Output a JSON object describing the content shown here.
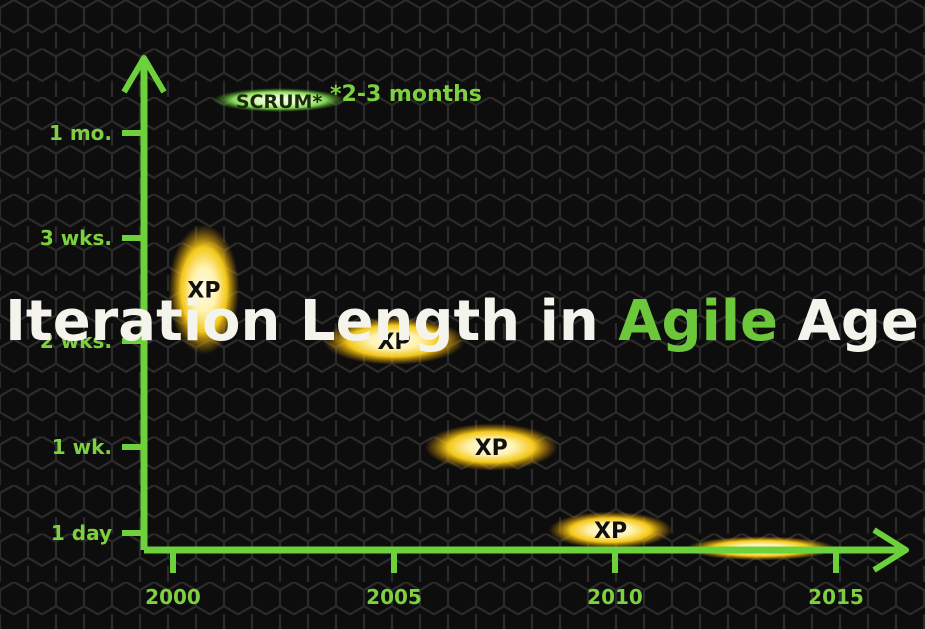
{
  "title": {
    "part1": "Iteration Length in ",
    "part2": "Agile",
    "part3": " Age"
  },
  "colors": {
    "axis": "#6cd13a",
    "tick_label": "#7dd13f",
    "title_white": "#f4f4ec",
    "title_green": "#6cc83a",
    "blob_yellow": "#ffd21a",
    "blob_core": "#fff7d0",
    "scrum_green": "#8de05a"
  },
  "chart_data": {
    "type": "scatter",
    "title": "Iteration Length in Agile Age",
    "xlabel": "",
    "ylabel": "",
    "x_ticks": [
      2000,
      2005,
      2010,
      2015
    ],
    "x_tick_labels": [
      "2000",
      "2005",
      "2010",
      "2015"
    ],
    "y_ticks": [
      {
        "label": "1 day",
        "days": 1
      },
      {
        "label": "1 wk.",
        "days": 7
      },
      {
        "label": "2 wks.",
        "days": 14
      },
      {
        "label": "3 wks.",
        "days": 21
      },
      {
        "label": "1 mo.",
        "days": 30
      }
    ],
    "xlim": [
      1999.3,
      2016.5
    ],
    "ylim": [
      0,
      37
    ],
    "points": [
      {
        "label": "SCRUM*",
        "year": 2002.4,
        "days": 37,
        "color": "green",
        "x_spread": 1.5,
        "y_spread": 1.0
      },
      {
        "label": "XP",
        "year": 2000.7,
        "days": 17.5,
        "color": "yellow",
        "x_spread": 0.8,
        "y_spread": 4.5
      },
      {
        "label": "XP",
        "year": 2005.0,
        "days": 14,
        "color": "yellow",
        "x_spread": 1.6,
        "y_spread": 1.6
      },
      {
        "label": "XP",
        "year": 2007.2,
        "days": 7,
        "color": "yellow",
        "x_spread": 1.5,
        "y_spread": 1.6
      },
      {
        "label": "XP",
        "year": 2009.9,
        "days": 1.2,
        "color": "yellow",
        "x_spread": 1.4,
        "y_spread": 1.2
      },
      {
        "label": "",
        "year": 2013.3,
        "days": 0.1,
        "color": "yellow",
        "x_spread": 1.7,
        "y_spread": 0.6
      }
    ],
    "annotations": [
      {
        "text": "*2-3 months"
      }
    ],
    "grid": false,
    "legend": "none"
  }
}
